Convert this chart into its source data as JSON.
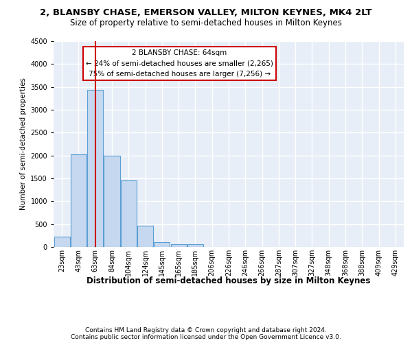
{
  "title1": "2, BLANSBY CHASE, EMERSON VALLEY, MILTON KEYNES, MK4 2LT",
  "title2": "Size of property relative to semi-detached houses in Milton Keynes",
  "xlabel": "Distribution of semi-detached houses by size in Milton Keynes",
  "ylabel": "Number of semi-detached properties",
  "footnote1": "Contains HM Land Registry data © Crown copyright and database right 2024.",
  "footnote2": "Contains public sector information licensed under the Open Government Licence v3.0.",
  "bar_labels": [
    "23sqm",
    "43sqm",
    "63sqm",
    "84sqm",
    "104sqm",
    "124sqm",
    "145sqm",
    "165sqm",
    "185sqm",
    "206sqm",
    "226sqm",
    "246sqm",
    "266sqm",
    "287sqm",
    "307sqm",
    "327sqm",
    "348sqm",
    "368sqm",
    "388sqm",
    "409sqm",
    "429sqm"
  ],
  "bar_values": [
    230,
    2020,
    3430,
    2000,
    1450,
    470,
    105,
    60,
    55,
    0,
    0,
    0,
    0,
    0,
    0,
    0,
    0,
    0,
    0,
    0,
    0
  ],
  "bar_color": "#c5d8f0",
  "bar_edge_color": "#5a9fd4",
  "line_color": "#cc0000",
  "annotation_title": "2 BLANSBY CHASE: 64sqm",
  "annotation_line1": "← 24% of semi-detached houses are smaller (2,265)",
  "annotation_line2": "75% of semi-detached houses are larger (7,256) →",
  "annotation_box_color": "#ffffff",
  "annotation_box_edge": "#cc0000",
  "ylim": [
    0,
    4500
  ],
  "background_color": "#e8eef7",
  "grid_color": "#ffffff",
  "title1_fontsize": 9.5,
  "title2_fontsize": 8.5,
  "xlabel_fontsize": 8.5,
  "ylabel_fontsize": 7.5,
  "tick_fontsize": 7,
  "footnote_fontsize": 6.5,
  "annotation_fontsize": 7.5
}
